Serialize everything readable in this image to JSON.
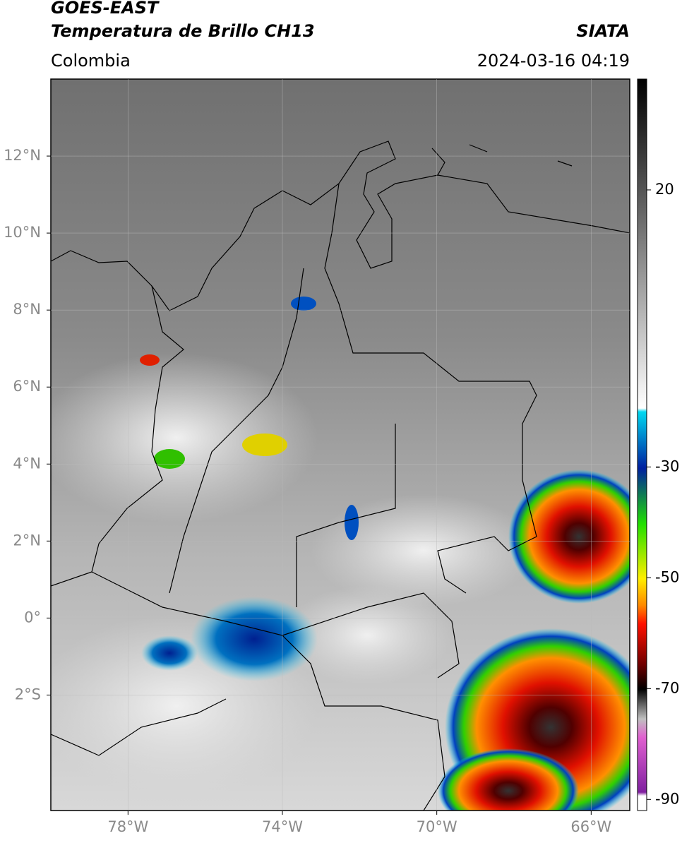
{
  "header": {
    "title": "GOES-EAST",
    "subtitle": "Temperatura de Brillo CH13",
    "source": "SIATA",
    "region": "Colombia",
    "datetime": "2024-03-16 04:19"
  },
  "map": {
    "xlim": [
      -80,
      -65
    ],
    "xticks": [
      {
        "value": -78,
        "label": "78°W"
      },
      {
        "value": -74,
        "label": "74°W"
      },
      {
        "value": -70,
        "label": "70°W"
      },
      {
        "value": -66,
        "label": "66°W"
      }
    ],
    "ylim": [
      -5,
      14
    ],
    "yticks": [
      {
        "value": 12,
        "label": "12°N"
      },
      {
        "value": 10,
        "label": "10°N"
      },
      {
        "value": 8,
        "label": "8°N"
      },
      {
        "value": 6,
        "label": "6°N"
      },
      {
        "value": 4,
        "label": "4°N"
      },
      {
        "value": 2,
        "label": "2°N"
      },
      {
        "value": 0,
        "label": "0°"
      },
      {
        "value": -2,
        "label": "2°S"
      }
    ],
    "grid": true
  },
  "colorbar": {
    "lim": [
      -92,
      40
    ],
    "ticks": [
      20,
      -30,
      -50,
      -70,
      -90
    ]
  }
}
